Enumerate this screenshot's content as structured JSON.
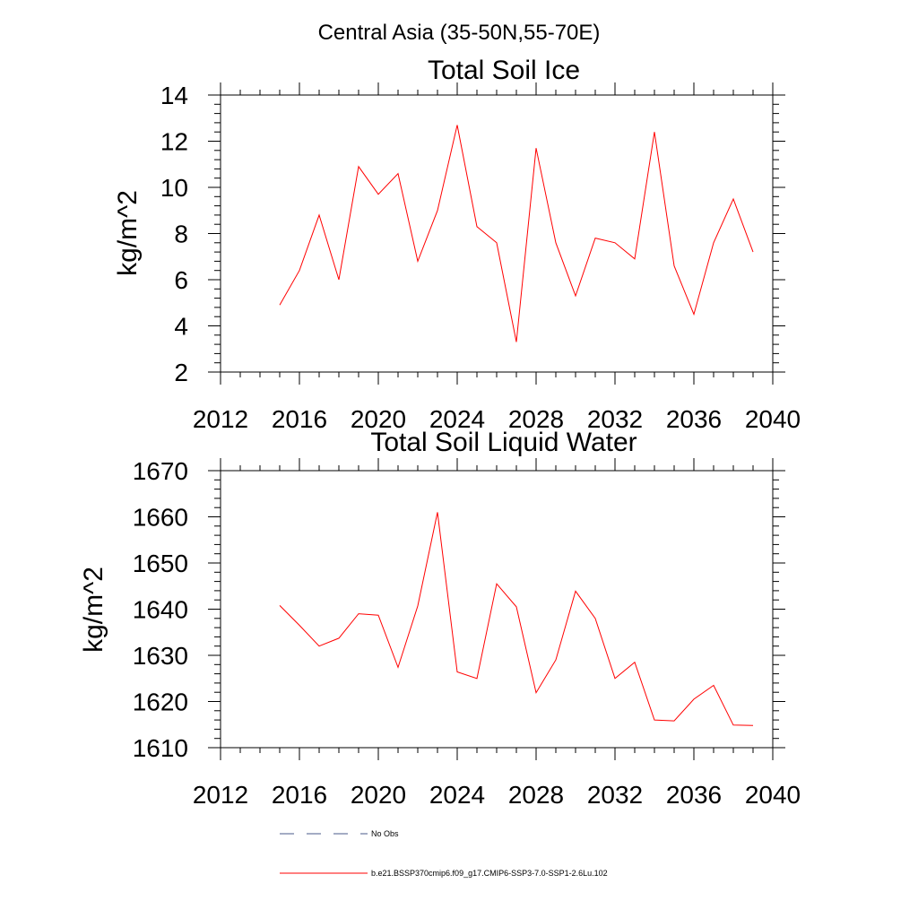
{
  "figure": {
    "title": "Central Asia (35-50N,55-70E)"
  },
  "chart_data": [
    {
      "type": "line",
      "title": "Total Soil Ice",
      "xlabel": "",
      "ylabel": "kg/m^2",
      "xlim": [
        2012,
        2040
      ],
      "ylim": [
        2,
        14
      ],
      "x_ticks": [
        2012,
        2016,
        2020,
        2024,
        2028,
        2032,
        2036,
        2040
      ],
      "y_ticks": [
        2,
        4,
        6,
        8,
        10,
        12,
        14
      ],
      "grid": false,
      "series": [
        {
          "color": "#ff0000",
          "x": [
            2015,
            2016,
            2017,
            2018,
            2019,
            2020,
            2021,
            2022,
            2023,
            2024,
            2025,
            2026,
            2027,
            2028,
            2029,
            2030,
            2031,
            2032,
            2033,
            2034,
            2035,
            2036,
            2037,
            2038,
            2039
          ],
          "y": [
            4.9,
            6.4,
            8.8,
            6.0,
            10.9,
            9.7,
            10.6,
            6.8,
            9.0,
            12.7,
            8.3,
            7.6,
            3.3,
            11.7,
            7.6,
            5.3,
            7.8,
            7.6,
            6.9,
            12.4,
            6.6,
            4.5,
            7.6,
            9.5,
            7.2
          ]
        }
      ]
    },
    {
      "type": "line",
      "title": "Total Soil Liquid Water",
      "xlabel": "",
      "ylabel": "kg/m^2",
      "xlim": [
        2012,
        2040
      ],
      "ylim": [
        1610,
        1670
      ],
      "x_ticks": [
        2012,
        2016,
        2020,
        2024,
        2028,
        2032,
        2036,
        2040
      ],
      "y_ticks": [
        1610,
        1620,
        1630,
        1640,
        1650,
        1660,
        1670
      ],
      "grid": false,
      "series": [
        {
          "color": "#ff0000",
          "x": [
            2015,
            2016,
            2017,
            2018,
            2019,
            2020,
            2021,
            2022,
            2023,
            2024,
            2025,
            2026,
            2027,
            2028,
            2029,
            2030,
            2031,
            2032,
            2033,
            2034,
            2035,
            2036,
            2037,
            2038,
            2039
          ],
          "y": [
            1640.8,
            1636.5,
            1632.0,
            1633.7,
            1639.0,
            1638.7,
            1627.4,
            1640.7,
            1661.0,
            1626.4,
            1625.0,
            1645.5,
            1640.5,
            1621.9,
            1629.0,
            1643.9,
            1638.0,
            1625.0,
            1628.5,
            1616.0,
            1615.8,
            1620.5,
            1623.5,
            1614.9,
            1614.8
          ]
        }
      ]
    }
  ],
  "legend": {
    "position": "bottom",
    "entries": [
      {
        "label": "No Obs",
        "color": "#4a5a8a",
        "style": "dashed"
      },
      {
        "label": "b.e21.BSSP370cmip6.f09_g17.CMIP6-SSP3-7.0-SSP1-2.6Lu.102",
        "color": "#ff0000",
        "style": "solid"
      }
    ]
  }
}
